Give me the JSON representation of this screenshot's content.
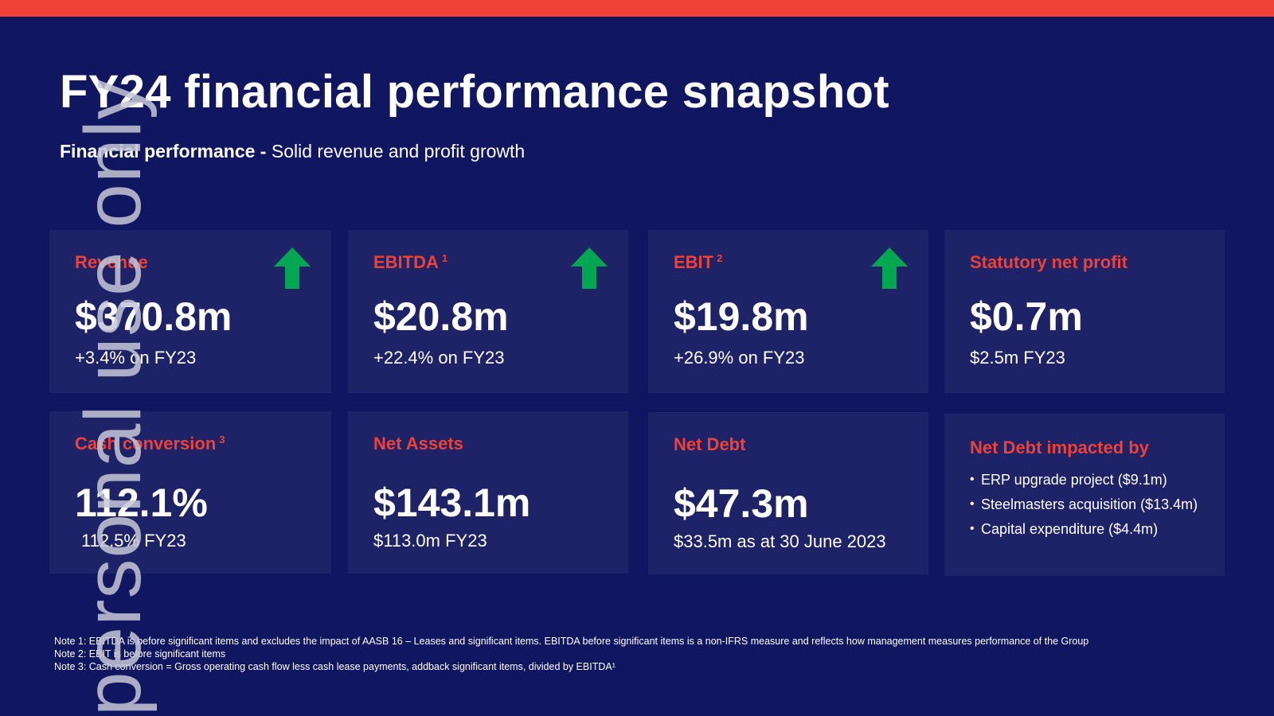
{
  "header": {
    "title": "FY24 financial performance snapshot",
    "subtitle_bold": "Financial performance -",
    "subtitle_rest": "Solid revenue and profit growth"
  },
  "watermark": "personal use only",
  "cards": {
    "revenue": {
      "label": "Revenue",
      "sup": "",
      "value": "$370.8m",
      "sub": "+3.4% on FY23",
      "trend": "up-arrow-icon"
    },
    "ebitda": {
      "label": "EBITDA",
      "sup": "1",
      "value": "$20.8m",
      "sub": "+22.4% on FY23",
      "trend": "up-arrow-icon"
    },
    "ebit": {
      "label": "EBIT",
      "sup": "2",
      "value": "$19.8m",
      "sub": "+26.9% on FY23",
      "trend": "up-arrow-icon"
    },
    "profit": {
      "label": "Statutory net profit",
      "value": "$0.7m",
      "sub": "$2.5m FY23"
    },
    "cash": {
      "label": "Cash conversion",
      "sup": "3",
      "value": "112.1%",
      "sub": "112.5% FY23"
    },
    "assets": {
      "label": "Net Assets",
      "value": "$143.1m",
      "sub": "$113.0m FY23"
    },
    "debt": {
      "label": "Net Debt",
      "value": "$47.3m",
      "sub": "$33.5m as at 30 June 2023"
    },
    "impacts": {
      "label": "Net Debt impacted by",
      "items": [
        "ERP upgrade project ($9.1m)",
        "Steelmasters acquisition ($13.4m)",
        "Capital expenditure ($4.4m)"
      ]
    }
  },
  "notes": [
    "Note 1: EBITDA is before significant items and excludes the impact of AASB 16 – Leases and significant items. EBITDA before significant items is a non-IFRS measure and reflects how management measures performance of the Group",
    "Note 2: EBIT is before significant items",
    "Note 3: Cash conversion = Gross operating cash flow less cash lease payments, addback significant items, divided by EBITDA¹"
  ],
  "colors": {
    "background": "#111660",
    "card": "#1e2266",
    "accent": "#ef4136",
    "arrow": "#00a650"
  }
}
